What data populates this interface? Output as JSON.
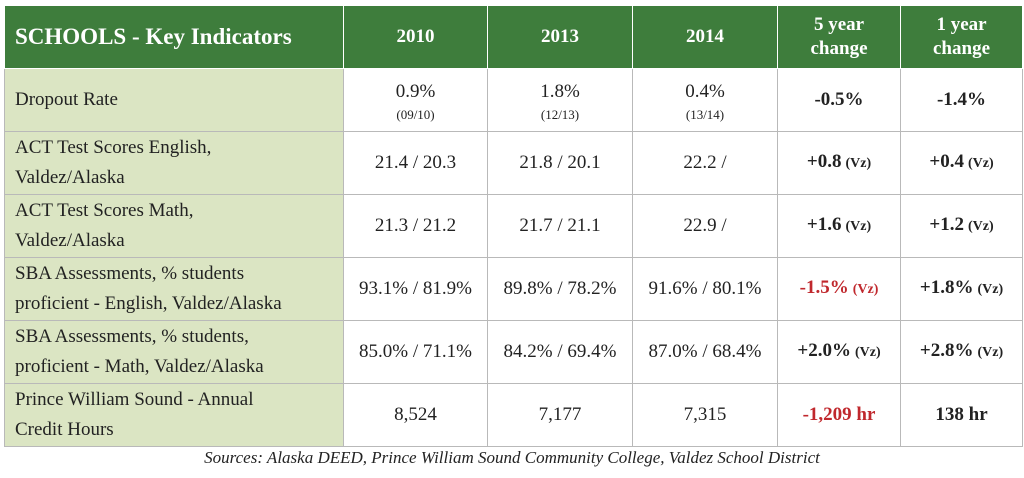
{
  "table": {
    "header": [
      [
        "SCHOOLS - Key Indicators"
      ],
      [
        "2010"
      ],
      [
        "2013"
      ],
      [
        "2014"
      ],
      [
        "5 year",
        "change"
      ],
      [
        "1 year",
        "change"
      ]
    ],
    "rows": [
      {
        "label": [
          "Dropout Rate"
        ],
        "cells": [
          {
            "text": "0.9%",
            "note": "(09/10)"
          },
          {
            "text": "1.8%",
            "note": "(12/13)"
          },
          {
            "text": "0.4%",
            "note": "(13/14)"
          },
          {
            "text": "-0.5%"
          },
          {
            "text": "-1.4%"
          }
        ]
      },
      {
        "label": [
          "ACT Test Scores English,",
          "Valdez/Alaska"
        ],
        "cells": [
          {
            "text": "21.4 / 20.3"
          },
          {
            "text": "21.8 / 20.1"
          },
          {
            "text": "22.2 /"
          },
          {
            "text": "+0.8",
            "note": "(Vz)"
          },
          {
            "text": "+0.4",
            "note": "(Vz)"
          }
        ]
      },
      {
        "label": [
          "ACT Test Scores Math,",
          "Valdez/Alaska"
        ],
        "cells": [
          {
            "text": "21.3 / 21.2"
          },
          {
            "text": "21.7 / 21.1"
          },
          {
            "text": "22.9 /"
          },
          {
            "text": "+1.6",
            "note": "(Vz)"
          },
          {
            "text": "+1.2",
            "note": "(Vz)"
          }
        ]
      },
      {
        "label": [
          "SBA Assessments, % students",
          "proficient - English,  Valdez/Alaska"
        ],
        "cells": [
          {
            "text": "93.1% / 81.9%"
          },
          {
            "text": "89.8% / 78.2%"
          },
          {
            "text": "91.6% / 80.1%"
          },
          {
            "text": "-1.5%",
            "note": "(Vz)",
            "color": "#c0282d"
          },
          {
            "text": "+1.8%",
            "note": "(Vz)"
          }
        ]
      },
      {
        "label": [
          "SBA Assessments, % students,",
          "proficient - Math, Valdez/Alaska"
        ],
        "cells": [
          {
            "text": "85.0% / 71.1%"
          },
          {
            "text": "84.2% / 69.4%"
          },
          {
            "text": "87.0% / 68.4%"
          },
          {
            "text": "+2.0%",
            "note": "(Vz)"
          },
          {
            "text": "+2.8%",
            "note": "(Vz)"
          }
        ]
      },
      {
        "label": [
          "Prince William Sound  - Annual",
          "Credit Hours"
        ],
        "cells": [
          {
            "text": "8,524"
          },
          {
            "text": "7,177"
          },
          {
            "text": "7,315"
          },
          {
            "text": "-1,209 hr",
            "color": "#c0282d"
          },
          {
            "text": "138 hr"
          }
        ]
      }
    ],
    "source": "Sources: Alaska DEED, Prince William Sound Community College, Valdez School District"
  }
}
